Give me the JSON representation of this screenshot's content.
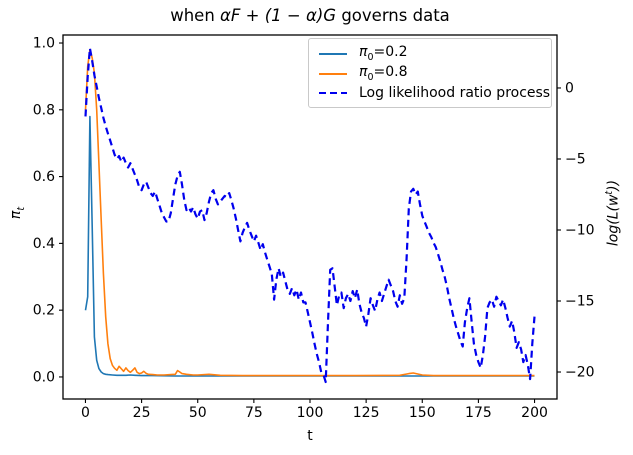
{
  "chart_data": {
    "type": "line",
    "title": "when αF + (1 − α)G governs data",
    "title_parts": {
      "prefix": "when ",
      "math": "αF + (1 − α)G",
      "suffix": " governs data"
    },
    "xlabel": "t",
    "ylabel_left": "πt",
    "ylabel_left_parts": {
      "base": "π",
      "sub": "t"
    },
    "ylabel_right": "log(L(w^t))",
    "ylabel_right_parts": {
      "prefix": "log(L(w",
      "sup": "t",
      "suffix": "))"
    },
    "xlim": [
      -10,
      210
    ],
    "ylim_left": [
      -0.066,
      1.024
    ],
    "ylim_right": [
      -21.9,
      3.73
    ],
    "grid": false,
    "background": "#ffffff",
    "x_ticks": [
      {
        "v": 0,
        "label": "0"
      },
      {
        "v": 25,
        "label": "25"
      },
      {
        "v": 50,
        "label": "50"
      },
      {
        "v": 75,
        "label": "75"
      },
      {
        "v": 100,
        "label": "100"
      },
      {
        "v": 125,
        "label": "125"
      },
      {
        "v": 150,
        "label": "150"
      },
      {
        "v": 175,
        "label": "175"
      },
      {
        "v": 200,
        "label": "200"
      }
    ],
    "y_ticks_left": [
      {
        "v": 0.0,
        "label": "0.0"
      },
      {
        "v": 0.2,
        "label": "0.2"
      },
      {
        "v": 0.4,
        "label": "0.4"
      },
      {
        "v": 0.6,
        "label": "0.6"
      },
      {
        "v": 0.8,
        "label": "0.8"
      },
      {
        "v": 1.0,
        "label": "1.0"
      }
    ],
    "y_ticks_right": [
      {
        "v": 0,
        "label": "0"
      },
      {
        "v": -5,
        "label": "−5"
      },
      {
        "v": -10,
        "label": "−10"
      },
      {
        "v": -15,
        "label": "−15"
      },
      {
        "v": -20,
        "label": "−20"
      }
    ],
    "legend": {
      "position": "upper right",
      "entries": [
        {
          "label": "π0=0.2",
          "label_base": "π",
          "label_sub": "0",
          "label_rest": "=0.2",
          "color": "#1f77b4",
          "style": "solid"
        },
        {
          "label": "π0=0.8",
          "label_base": "π",
          "label_sub": "0",
          "label_rest": "=0.8",
          "color": "#ff7f0e",
          "style": "solid"
        },
        {
          "label": "Log likelihood ratio process",
          "color": "#0000ee",
          "style": "dashed"
        }
      ]
    },
    "series": [
      {
        "id": "pi0-0.2",
        "name": "π0=0.2",
        "axis": "left",
        "color": "#1f77b4",
        "style": "solid",
        "x": [
          0,
          1,
          2,
          3,
          4,
          5,
          6,
          7,
          8,
          9,
          10,
          12,
          14,
          16,
          18,
          20,
          22,
          25,
          30,
          40,
          60,
          80,
          100,
          120,
          140,
          160,
          180,
          200
        ],
        "y": [
          0.2,
          0.24,
          0.78,
          0.45,
          0.12,
          0.05,
          0.025,
          0.015,
          0.01,
          0.008,
          0.007,
          0.006,
          0.005,
          0.005,
          0.005,
          0.006,
          0.005,
          0.004,
          0.004,
          0.003,
          0.003,
          0.003,
          0.003,
          0.003,
          0.003,
          0.003,
          0.003,
          0.003
        ]
      },
      {
        "id": "pi0-0.8",
        "name": "π0=0.8",
        "axis": "left",
        "color": "#ff7f0e",
        "style": "solid",
        "x": [
          0,
          1,
          2,
          3,
          4,
          5,
          6,
          7,
          8,
          9,
          10,
          11,
          12,
          13,
          14,
          15,
          16,
          17,
          18,
          19,
          20,
          21,
          22,
          23,
          24,
          25,
          26,
          27,
          28,
          30,
          32,
          35,
          38,
          40,
          41,
          42,
          43,
          45,
          48,
          50,
          55,
          60,
          70,
          80,
          100,
          120,
          140,
          144,
          146,
          148,
          150,
          155,
          160,
          180,
          200
        ],
        "y": [
          0.8,
          0.93,
          0.98,
          0.955,
          0.91,
          0.8,
          0.64,
          0.47,
          0.31,
          0.18,
          0.1,
          0.055,
          0.035,
          0.026,
          0.02,
          0.032,
          0.024,
          0.017,
          0.027,
          0.019,
          0.014,
          0.02,
          0.027,
          0.014,
          0.01,
          0.012,
          0.017,
          0.011,
          0.008,
          0.007,
          0.006,
          0.006,
          0.007,
          0.008,
          0.019,
          0.015,
          0.01,
          0.008,
          0.006,
          0.006,
          0.008,
          0.005,
          0.004,
          0.004,
          0.004,
          0.004,
          0.005,
          0.01,
          0.012,
          0.009,
          0.006,
          0.004,
          0.004,
          0.004,
          0.004
        ]
      },
      {
        "id": "llr",
        "name": "Log likelihood ratio process",
        "axis": "right",
        "color": "#0000ee",
        "style": "dashed",
        "x0": 0,
        "dx": 1,
        "y": [
          -2.0,
          0.8,
          2.8,
          1.9,
          0.9,
          0.1,
          -0.7,
          -1.4,
          -2.1,
          -2.7,
          -3.2,
          -3.7,
          -4.2,
          -4.7,
          -5.0,
          -4.8,
          -5.2,
          -4.9,
          -5.3,
          -5.6,
          -5.3,
          -5.7,
          -6.1,
          -6.5,
          -7.0,
          -7.2,
          -6.8,
          -6.6,
          -7.0,
          -7.4,
          -7.6,
          -7.3,
          -7.8,
          -8.3,
          -8.8,
          -9.1,
          -9.4,
          -9.4,
          -8.8,
          -7.8,
          -6.8,
          -6.2,
          -5.9,
          -6.8,
          -7.9,
          -8.6,
          -8.4,
          -8.7,
          -8.4,
          -8.9,
          -9.2,
          -8.7,
          -8.6,
          -9.3,
          -8.8,
          -8.0,
          -7.4,
          -7.2,
          -7.8,
          -8.2,
          -8.0,
          -7.8,
          -7.6,
          -7.7,
          -7.4,
          -7.9,
          -8.5,
          -9.2,
          -10.0,
          -10.8,
          -10.2,
          -9.8,
          -9.5,
          -10.0,
          -10.4,
          -10.8,
          -10.4,
          -10.9,
          -11.4,
          -11.0,
          -11.6,
          -12.1,
          -12.6,
          -13.1,
          -14.9,
          -13.5,
          -12.7,
          -13.3,
          -13.0,
          -13.6,
          -14.2,
          -14.5,
          -14.1,
          -14.6,
          -14.2,
          -14.9,
          -14.4,
          -15.1,
          -15.1,
          -15.8,
          -16.5,
          -17.2,
          -18.0,
          -18.7,
          -19.3,
          -20.0,
          -20.2,
          -20.7,
          -16.5,
          -12.8,
          -12.7,
          -14.0,
          -15.3,
          -14.6,
          -14.4,
          -15.5,
          -14.8,
          -14.5,
          -15.0,
          -14.3,
          -14.8,
          -14.2,
          -15.2,
          -15.8,
          -16.2,
          -16.8,
          -15.9,
          -14.8,
          -15.3,
          -15.7,
          -14.9,
          -14.4,
          -15.0,
          -14.5,
          -14.0,
          -13.5,
          -13.9,
          -14.3,
          -15.0,
          -15.4,
          -14.6,
          -15.2,
          -14.8,
          -12.0,
          -8.5,
          -7.3,
          -7.1,
          -7.5,
          -7.3,
          -8.2,
          -9.0,
          -9.4,
          -9.8,
          -10.2,
          -10.5,
          -10.9,
          -11.2,
          -11.7,
          -12.2,
          -12.8,
          -13.3,
          -14.0,
          -14.8,
          -15.5,
          -16.2,
          -16.8,
          -17.3,
          -17.8,
          -18.2,
          -16.5,
          -15.5,
          -14.8,
          -16.5,
          -18.0,
          -18.8,
          -19.3,
          -19.7,
          -18.8,
          -17.5,
          -15.5,
          -15.1,
          -14.9,
          -15.4,
          -14.7,
          -15.0,
          -15.3,
          -14.9,
          -15.5,
          -16.2,
          -16.8,
          -16.4,
          -17.2,
          -18.3,
          -17.9,
          -18.4,
          -19.3,
          -18.8,
          -19.5,
          -20.5,
          -18.0,
          -16.1
        ]
      }
    ]
  }
}
